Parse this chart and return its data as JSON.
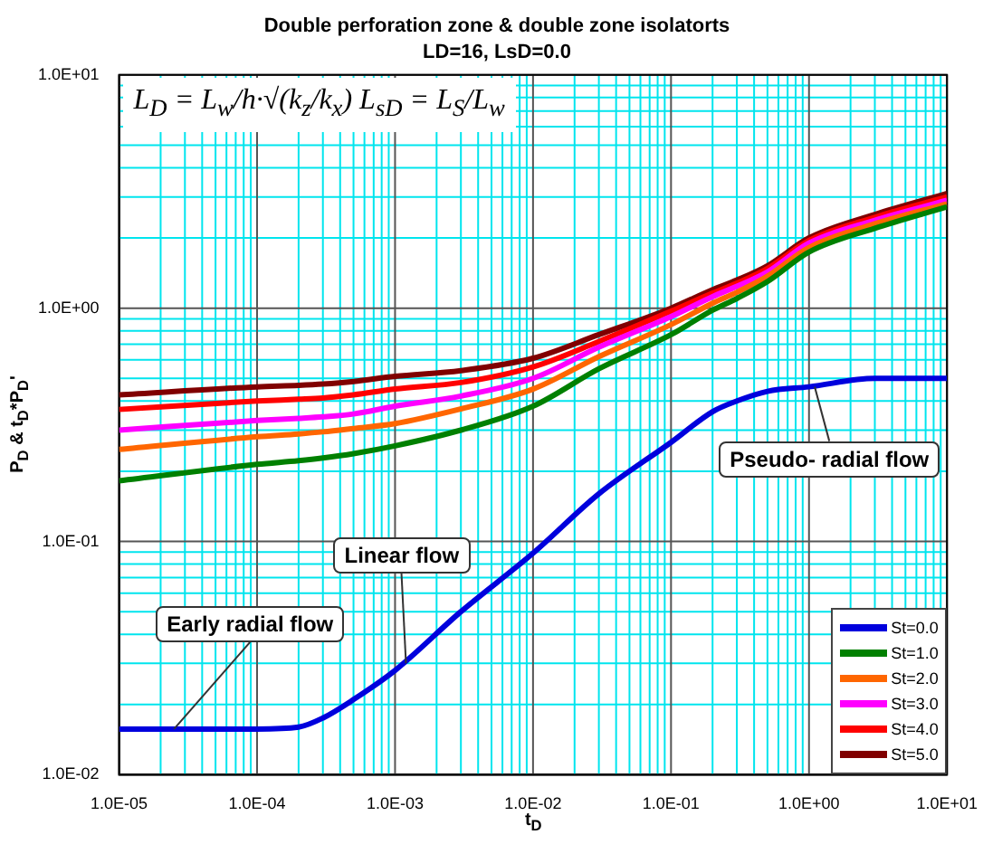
{
  "chart_data": {
    "type": "line",
    "title": "Double perforation zone & double zone isolatorts",
    "subtitle": "LD=16, LsD=0.0",
    "xlabel": "t$_{D}$",
    "ylabel": "P$_{D}$ & t$_{D}$*P$_{D}$'",
    "log": "xy",
    "grid": true,
    "legend": "bottom right",
    "marker": "none",
    "line_style": "solid",
    "xlim": [
      1e-05,
      10
    ],
    "ylim": [
      0.01,
      10
    ],
    "xticks": [
      {
        "value": 1e-05,
        "label": "1.0E-05"
      },
      {
        "value": 2e-05,
        "label": null
      },
      {
        "value": 3e-05,
        "label": null
      },
      {
        "value": 4e-05,
        "label": null
      },
      {
        "value": 5e-05,
        "label": null
      },
      {
        "value": 6e-05,
        "label": null
      },
      {
        "value": 7e-05,
        "label": null
      },
      {
        "value": 8e-05,
        "label": null
      },
      {
        "value": 9e-05,
        "label": null
      },
      {
        "value": 0.0001,
        "label": "1.0E-04"
      },
      {
        "value": 0.0002,
        "label": null
      },
      {
        "value": 0.0003,
        "label": null
      },
      {
        "value": 0.0004,
        "label": null
      },
      {
        "value": 0.0005,
        "label": null
      },
      {
        "value": 0.0006,
        "label": null
      },
      {
        "value": 0.0007,
        "label": null
      },
      {
        "value": 0.0008,
        "label": null
      },
      {
        "value": 0.0009,
        "label": null
      },
      {
        "value": 0.001,
        "label": "1.0E-03"
      },
      {
        "value": 0.002,
        "label": null
      },
      {
        "value": 0.003,
        "label": null
      },
      {
        "value": 0.004,
        "label": null
      },
      {
        "value": 0.005,
        "label": null
      },
      {
        "value": 0.006,
        "label": null
      },
      {
        "value": 0.007,
        "label": null
      },
      {
        "value": 0.008,
        "label": null
      },
      {
        "value": 0.009,
        "label": null
      },
      {
        "value": 0.01,
        "label": "1.0E-02"
      },
      {
        "value": 0.02,
        "label": null
      },
      {
        "value": 0.03,
        "label": null
      },
      {
        "value": 0.04,
        "label": null
      },
      {
        "value": 0.05,
        "label": null
      },
      {
        "value": 0.06,
        "label": null
      },
      {
        "value": 0.07,
        "label": null
      },
      {
        "value": 0.08,
        "label": null
      },
      {
        "value": 0.09,
        "label": null
      },
      {
        "value": 0.1,
        "label": "1.0E-01"
      },
      {
        "value": 0.2,
        "label": null
      },
      {
        "value": 0.3,
        "label": null
      },
      {
        "value": 0.4,
        "label": null
      },
      {
        "value": 0.5,
        "label": null
      },
      {
        "value": 0.6,
        "label": null
      },
      {
        "value": 0.7,
        "label": null
      },
      {
        "value": 0.8,
        "label": null
      },
      {
        "value": 0.9,
        "label": null
      },
      {
        "value": 1,
        "label": "1.0E+00"
      },
      {
        "value": 2,
        "label": null
      },
      {
        "value": 3,
        "label": null
      },
      {
        "value": 4,
        "label": null
      },
      {
        "value": 5,
        "label": null
      },
      {
        "value": 6,
        "label": null
      },
      {
        "value": 7,
        "label": null
      },
      {
        "value": 8,
        "label": null
      },
      {
        "value": 9,
        "label": null
      },
      {
        "value": 10,
        "label": "1.0E+01"
      }
    ],
    "yticks": [
      {
        "value": 0.01,
        "label": "1.0E-02"
      },
      {
        "value": 0.02,
        "label": null
      },
      {
        "value": 0.03,
        "label": null
      },
      {
        "value": 0.04,
        "label": null
      },
      {
        "value": 0.05,
        "label": null
      },
      {
        "value": 0.06,
        "label": null
      },
      {
        "value": 0.07,
        "label": null
      },
      {
        "value": 0.08,
        "label": null
      },
      {
        "value": 0.09,
        "label": null
      },
      {
        "value": 0.1,
        "label": "1.0E-01"
      },
      {
        "value": 0.2,
        "label": null
      },
      {
        "value": 0.3,
        "label": null
      },
      {
        "value": 0.4,
        "label": null
      },
      {
        "value": 0.5,
        "label": null
      },
      {
        "value": 0.6,
        "label": null
      },
      {
        "value": 0.7,
        "label": null
      },
      {
        "value": 0.8,
        "label": null
      },
      {
        "value": 0.9,
        "label": null
      },
      {
        "value": 1,
        "label": "1.0E+00"
      },
      {
        "value": 2,
        "label": null
      },
      {
        "value": 3,
        "label": null
      },
      {
        "value": 4,
        "label": null
      },
      {
        "value": 5,
        "label": null
      },
      {
        "value": 6,
        "label": null
      },
      {
        "value": 7,
        "label": null
      },
      {
        "value": 8,
        "label": null
      },
      {
        "value": 9,
        "label": null
      },
      {
        "value": 10,
        "label": "1.0E+01"
      }
    ],
    "x": [
      1e-05,
      0.0001,
      0.0002,
      0.0003,
      0.0005,
      0.001,
      0.003,
      0.01,
      0.03,
      0.1,
      0.2,
      0.3,
      0.5,
      1,
      3,
      10
    ],
    "series": [
      {
        "name": "St=0.0",
        "color": "#0000dd",
        "values": [
          0.0157,
          0.0157,
          0.016,
          0.0175,
          0.021,
          0.028,
          0.05,
          0.089,
          0.16,
          0.266,
          0.36,
          0.4,
          0.44,
          0.46,
          0.5,
          0.5
        ]
      },
      {
        "name": "St=1.0",
        "color": "#008000",
        "values": [
          0.182,
          0.214,
          0.222,
          0.228,
          0.238,
          0.257,
          0.3,
          0.38,
          0.55,
          0.77,
          0.98,
          1.1,
          1.3,
          1.74,
          2.2,
          2.72
        ]
      },
      {
        "name": "St=2.0",
        "color": "#ff6600",
        "values": [
          0.248,
          0.281,
          0.289,
          0.295,
          0.305,
          0.32,
          0.37,
          0.45,
          0.62,
          0.85,
          1.05,
          1.17,
          1.37,
          1.82,
          2.3,
          2.8
        ]
      },
      {
        "name": "St=3.0",
        "color": "#ff00ff",
        "values": [
          0.3,
          0.33,
          0.337,
          0.342,
          0.352,
          0.38,
          0.42,
          0.5,
          0.68,
          0.92,
          1.12,
          1.24,
          1.43,
          1.9,
          2.38,
          2.9
        ]
      },
      {
        "name": "St=4.0",
        "color": "#ff0000",
        "values": [
          0.368,
          0.4,
          0.407,
          0.412,
          0.425,
          0.45,
          0.48,
          0.56,
          0.72,
          0.97,
          1.16,
          1.28,
          1.48,
          1.95,
          2.45,
          3.0
        ]
      },
      {
        "name": "St=5.0",
        "color": "#800000",
        "values": [
          0.425,
          0.46,
          0.467,
          0.473,
          0.485,
          0.51,
          0.54,
          0.61,
          0.77,
          1.0,
          1.2,
          1.32,
          1.52,
          2.0,
          2.52,
          3.1
        ]
      }
    ],
    "annotations": [
      {
        "text": "Early radial flow",
        "x": 2.5e-05,
        "y": 0.0157
      },
      {
        "text": "Linear flow",
        "x": 0.0012,
        "y": 0.03
      },
      {
        "text": "Pseudo- radial flow",
        "x": 1.1,
        "y": 0.46
      },
      "L$_{D}$ = L$_{w}$/h·√(k$_{z}$/k$_{x}$)   L$_{sD}$ = L$_{S}$/L$_{w}$"
    ]
  }
}
